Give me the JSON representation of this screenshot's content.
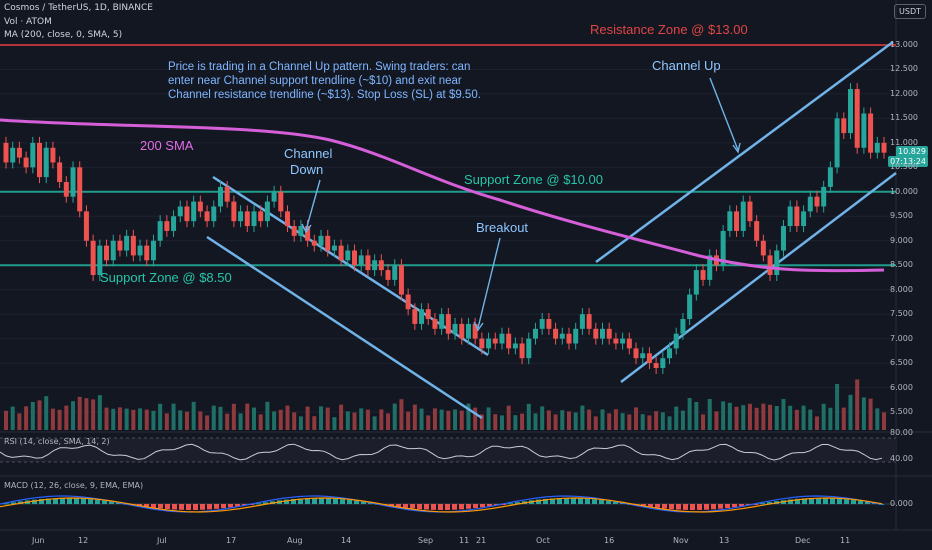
{
  "header": {
    "symbol_line": "Cosmos / TetherUS, 1D, BINANCE",
    "vol_line": "Vol · ATOM",
    "ma_line": "MA (200, close, 0, SMA, 5)",
    "currency": "USDT"
  },
  "rsi_panel": {
    "title": "RSI (14, close, SMA, 14, 2)",
    "ticks": [
      "80.00",
      "40.00"
    ]
  },
  "macd_panel": {
    "title": "MACD (12, 26, close, 9, EMA, EMA)",
    "ticks": [
      "0.000"
    ]
  },
  "annotations": {
    "note": "Price is trading in a Channel Up pattern. Swing traders: can enter near Channel support trendline (~$10) and exit near Channel resistance trendline (~$13). Stop Loss (SL) at $9.50.",
    "resistance": "Resistance Zone @ $13.00",
    "support10": "Support Zone @ $10.00",
    "support85": "Support Zone @ $8.50",
    "sma": "200 SMA",
    "channel_down_1": "Channel",
    "channel_down_2": "Down",
    "channel_up": "Channel Up",
    "breakout": "Breakout"
  },
  "price_badges": {
    "last": "10.829",
    "countdown": "07:13:24"
  },
  "colors": {
    "bg": "#131722",
    "up": "#26a69a",
    "down": "#ef5350",
    "sma": "#d45fd8",
    "teal": "#1f9c8a",
    "channel": "#6fb3e8",
    "resistance": "#b2343a"
  },
  "chart_data": {
    "type": "candlestick",
    "price_ticks": [
      "13.000",
      "12.500",
      "12.000",
      "11.500",
      "11.000",
      "10.500",
      "10.000",
      "9.500",
      "9.000",
      "8.500",
      "8.000",
      "7.500",
      "7.000",
      "6.500",
      "6.000",
      "5.500"
    ],
    "x_ticks": [
      "Jun",
      "12",
      "Jul",
      "17",
      "Aug",
      "14",
      "Sep",
      "11",
      "21",
      "Oct",
      "16",
      "Nov",
      "13",
      "Dec",
      "11"
    ],
    "levels": {
      "resistance": 13.0,
      "support_high": 10.0,
      "support_low": 8.5
    },
    "candles": [
      [
        11.0,
        10.6
      ],
      [
        10.6,
        10.9
      ],
      [
        10.9,
        10.7
      ],
      [
        10.7,
        10.5
      ],
      [
        10.5,
        11.0
      ],
      [
        11.0,
        10.3
      ],
      [
        10.3,
        10.9
      ],
      [
        10.9,
        10.6
      ],
      [
        10.6,
        10.2
      ],
      [
        10.2,
        9.9
      ],
      [
        9.9,
        10.5
      ],
      [
        10.5,
        9.6
      ],
      [
        9.6,
        9.0
      ],
      [
        9.0,
        8.3
      ],
      [
        8.3,
        8.9
      ],
      [
        8.9,
        8.6
      ],
      [
        8.6,
        9.0
      ],
      [
        9.0,
        8.8
      ],
      [
        8.8,
        9.1
      ],
      [
        9.1,
        8.7
      ],
      [
        8.7,
        8.9
      ],
      [
        8.9,
        8.6
      ],
      [
        8.6,
        9.0
      ],
      [
        9.0,
        9.4
      ],
      [
        9.4,
        9.2
      ],
      [
        9.2,
        9.5
      ],
      [
        9.5,
        9.7
      ],
      [
        9.7,
        9.4
      ],
      [
        9.4,
        9.8
      ],
      [
        9.8,
        9.6
      ],
      [
        9.6,
        9.4
      ],
      [
        9.4,
        9.7
      ],
      [
        9.7,
        10.1
      ],
      [
        10.1,
        9.8
      ],
      [
        9.8,
        9.4
      ],
      [
        9.4,
        9.6
      ],
      [
        9.6,
        9.3
      ],
      [
        9.3,
        9.6
      ],
      [
        9.6,
        9.4
      ],
      [
        9.4,
        9.8
      ],
      [
        9.8,
        10.0
      ],
      [
        10.0,
        9.6
      ],
      [
        9.6,
        9.3
      ],
      [
        9.3,
        9.1
      ],
      [
        9.1,
        9.3
      ],
      [
        9.3,
        9.0
      ],
      [
        9.0,
        8.9
      ],
      [
        8.9,
        9.1
      ],
      [
        9.1,
        8.8
      ],
      [
        8.8,
        8.9
      ],
      [
        8.9,
        8.6
      ],
      [
        8.6,
        8.8
      ],
      [
        8.8,
        8.5
      ],
      [
        8.5,
        8.7
      ],
      [
        8.7,
        8.4
      ],
      [
        8.4,
        8.6
      ],
      [
        8.6,
        8.4
      ],
      [
        8.4,
        8.2
      ],
      [
        8.2,
        8.5
      ],
      [
        8.5,
        7.9
      ],
      [
        7.9,
        7.6
      ],
      [
        7.6,
        7.3
      ],
      [
        7.3,
        7.6
      ],
      [
        7.6,
        7.4
      ],
      [
        7.4,
        7.2
      ],
      [
        7.2,
        7.5
      ],
      [
        7.5,
        7.1
      ],
      [
        7.1,
        7.3
      ],
      [
        7.3,
        7.0
      ],
      [
        7.0,
        7.3
      ],
      [
        7.3,
        7.0
      ],
      [
        7.0,
        6.8
      ],
      [
        6.8,
        7.0
      ],
      [
        7.0,
        6.9
      ],
      [
        6.9,
        7.1
      ],
      [
        7.1,
        6.8
      ],
      [
        6.8,
        6.9
      ],
      [
        6.9,
        6.6
      ],
      [
        6.6,
        7.0
      ],
      [
        7.0,
        7.2
      ],
      [
        7.2,
        7.4
      ],
      [
        7.4,
        7.2
      ],
      [
        7.2,
        7.0
      ],
      [
        7.0,
        7.1
      ],
      [
        7.1,
        6.9
      ],
      [
        6.9,
        7.2
      ],
      [
        7.2,
        7.5
      ],
      [
        7.5,
        7.2
      ],
      [
        7.2,
        7.0
      ],
      [
        7.0,
        7.2
      ],
      [
        7.2,
        7.0
      ],
      [
        7.0,
        6.9
      ],
      [
        6.9,
        7.0
      ],
      [
        7.0,
        6.8
      ],
      [
        6.8,
        6.6
      ],
      [
        6.6,
        6.7
      ],
      [
        6.7,
        6.5
      ],
      [
        6.5,
        6.4
      ],
      [
        6.4,
        6.6
      ],
      [
        6.6,
        6.8
      ],
      [
        6.8,
        7.1
      ],
      [
        7.1,
        7.4
      ],
      [
        7.4,
        7.9
      ],
      [
        7.9,
        8.4
      ],
      [
        8.4,
        8.2
      ],
      [
        8.2,
        8.7
      ],
      [
        8.7,
        8.5
      ],
      [
        8.5,
        9.2
      ],
      [
        9.2,
        9.6
      ],
      [
        9.6,
        9.2
      ],
      [
        9.2,
        9.8
      ],
      [
        9.8,
        9.4
      ],
      [
        9.4,
        9.0
      ],
      [
        9.0,
        8.7
      ],
      [
        8.7,
        8.3
      ],
      [
        8.3,
        8.8
      ],
      [
        8.8,
        9.3
      ],
      [
        9.3,
        9.7
      ],
      [
        9.7,
        9.3
      ],
      [
        9.3,
        9.6
      ],
      [
        9.6,
        9.9
      ],
      [
        9.9,
        9.7
      ],
      [
        9.7,
        10.1
      ],
      [
        10.1,
        10.5
      ],
      [
        10.5,
        11.5
      ],
      [
        11.5,
        11.2
      ],
      [
        11.2,
        12.1
      ],
      [
        12.1,
        10.9
      ],
      [
        10.9,
        11.6
      ],
      [
        11.6,
        10.8
      ],
      [
        10.8,
        11.0
      ],
      [
        11.0,
        10.8
      ]
    ]
  }
}
